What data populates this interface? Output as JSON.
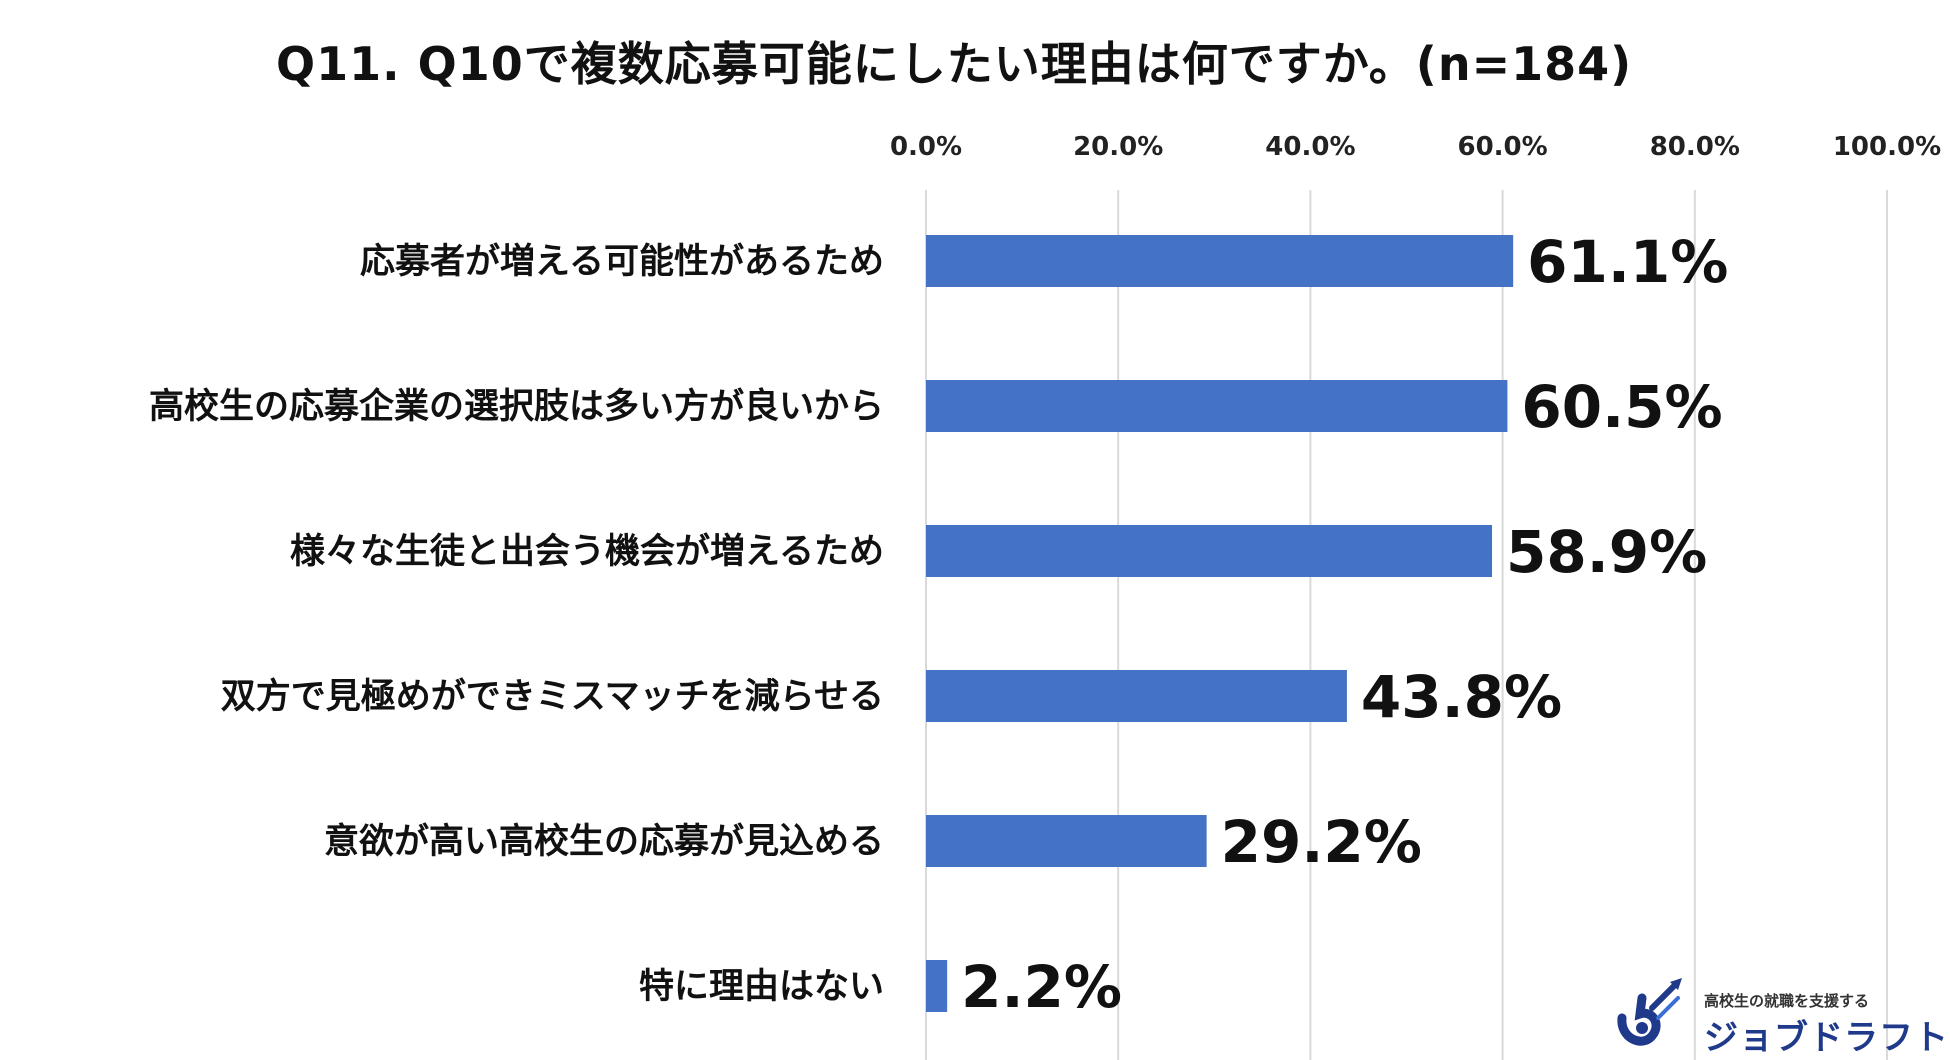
{
  "chart_data": {
    "type": "bar",
    "orientation": "horizontal",
    "title": "Q11. Q10で複数応募可能にしたい理由は何ですか。(n=184)",
    "categories": [
      "応募者が増える可能性があるため",
      "高校生の応募企業の選択肢は多い方が良いから",
      "様々な生徒と出会う機会が増えるため",
      "双方で見極めができミスマッチを減らせる",
      "意欲が高い高校生の応募が見込める",
      "特に理由はない"
    ],
    "values": [
      61.1,
      60.5,
      58.9,
      43.8,
      29.2,
      2.2
    ],
    "value_labels": [
      "61.1%",
      "60.5%",
      "58.9%",
      "43.8%",
      "29.2%",
      "2.2%"
    ],
    "xlim": [
      0,
      100
    ],
    "ticks": [
      0,
      20,
      40,
      60,
      80,
      100
    ],
    "tick_labels": [
      "0.0%",
      "20.0%",
      "40.0%",
      "60.0%",
      "80.0%",
      "100.0%"
    ],
    "axis_position": "top",
    "grid": true,
    "legend": "none",
    "bar_color": "#4472C4",
    "grid_color": "#D9D9D9"
  },
  "logo": {
    "tagline": "高校生の就職を支援する",
    "name": "ジョブドラフト",
    "color": "#1F3A8A"
  }
}
